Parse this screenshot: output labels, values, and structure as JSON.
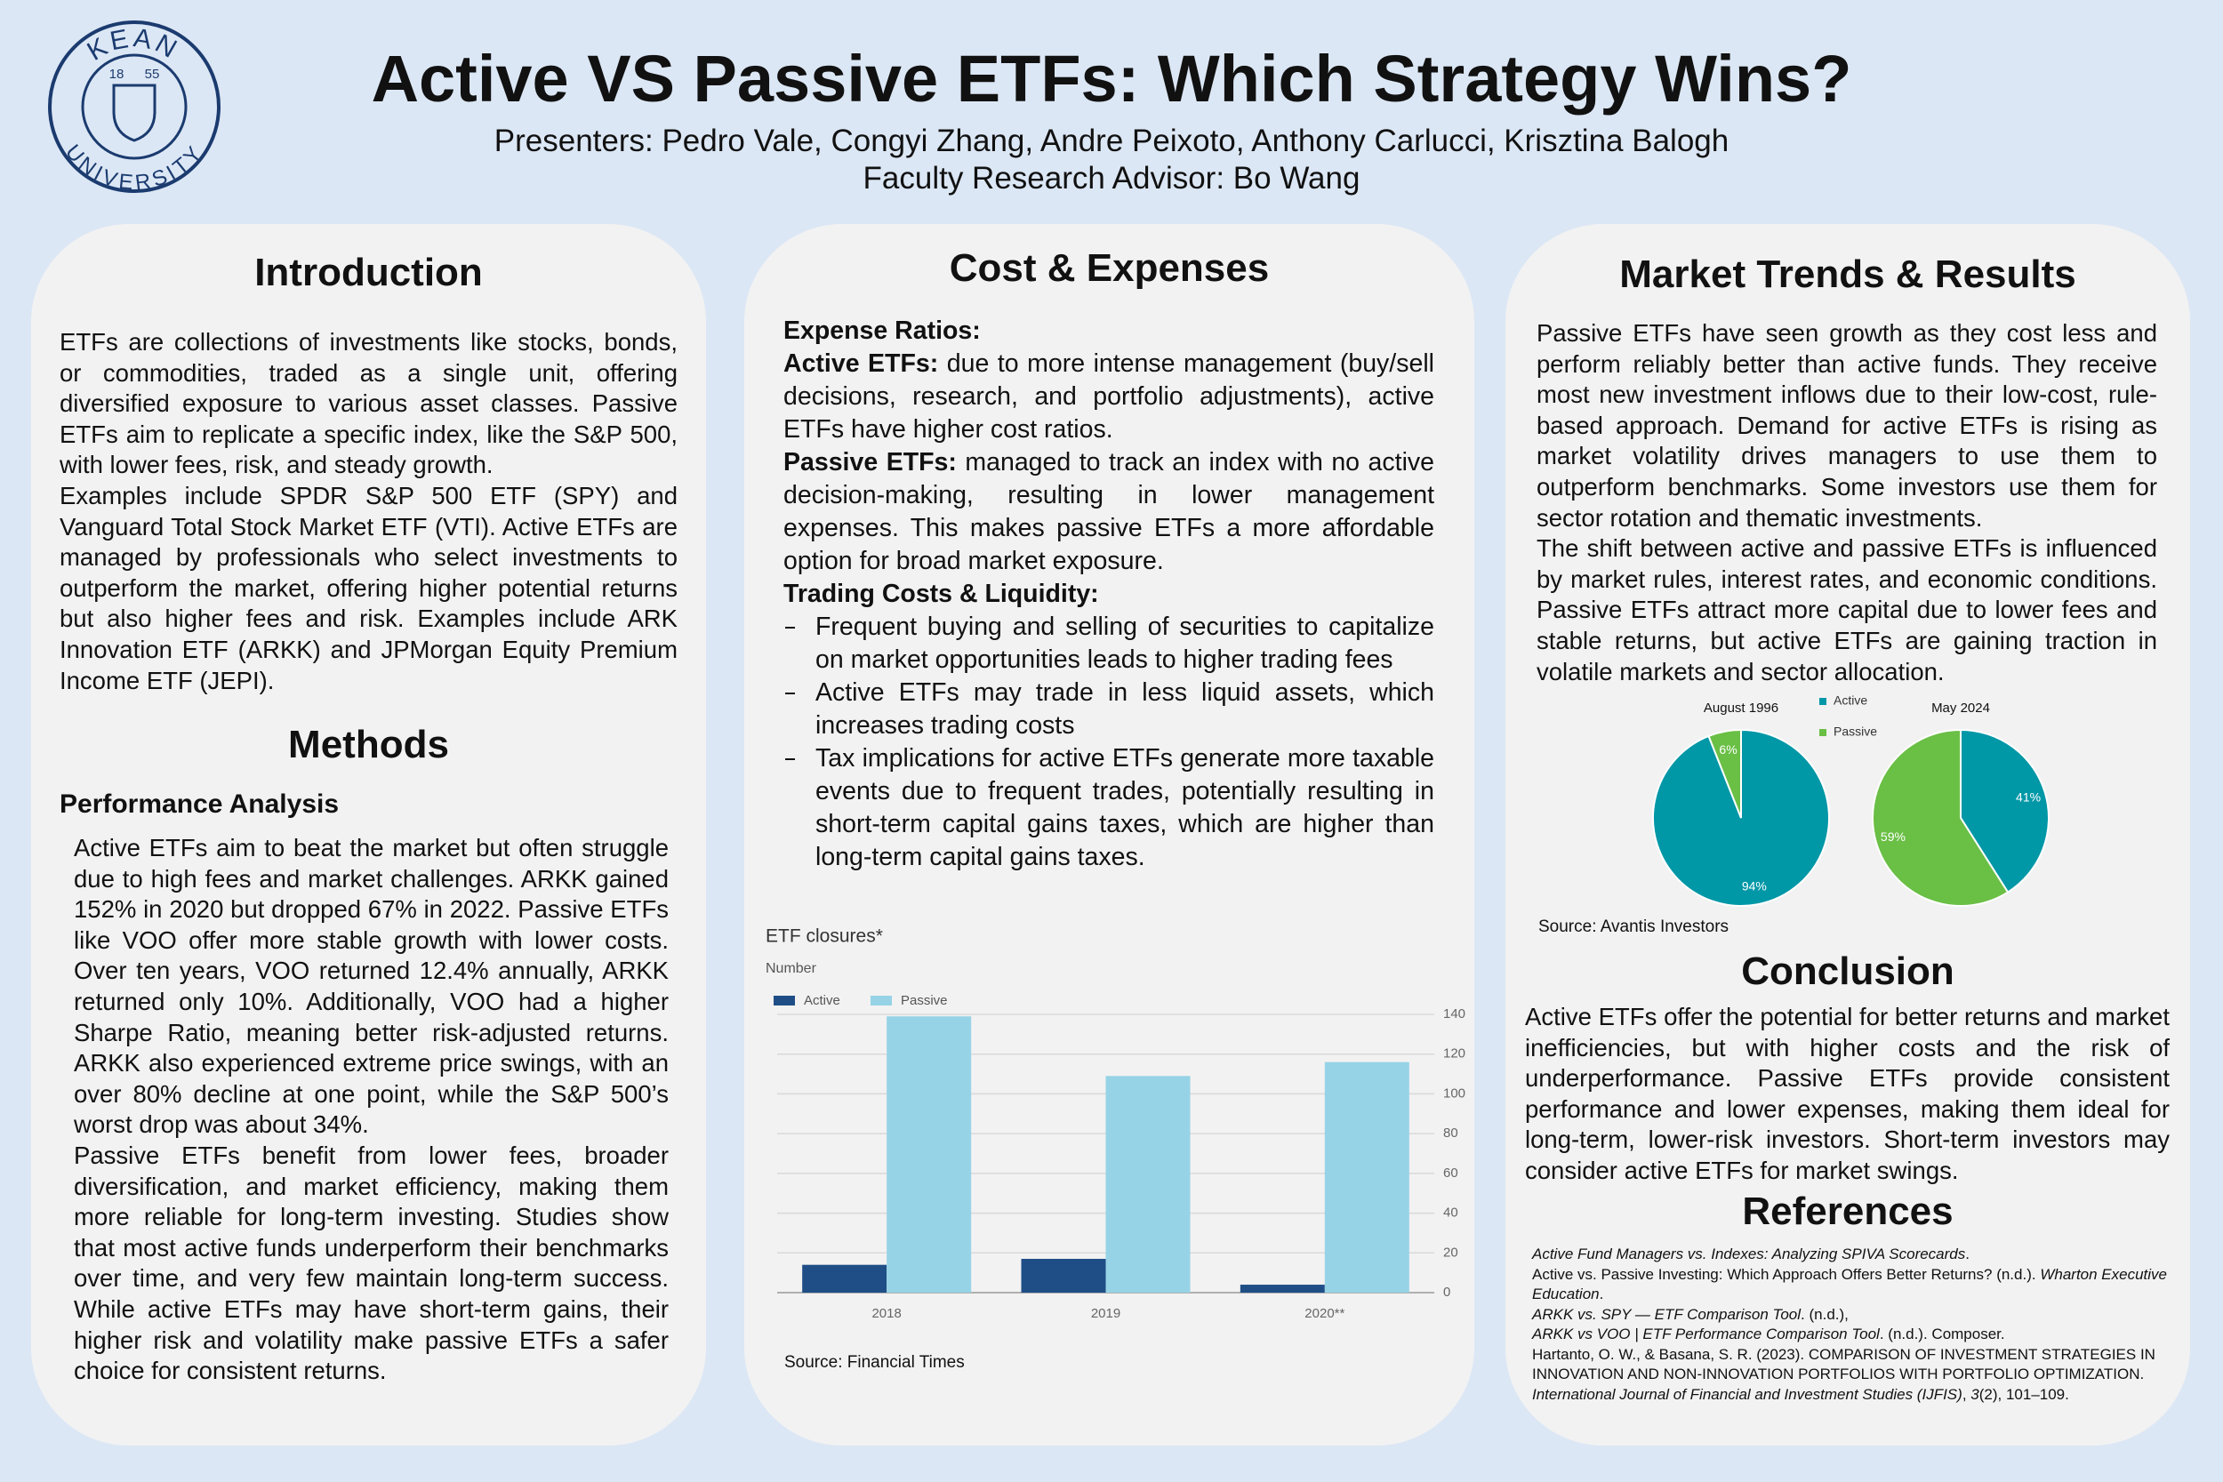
{
  "header": {
    "title": "Active VS Passive ETFs: Which Strategy Wins?",
    "presenters": "Presenters: Pedro Vale, Congyi Zhang, Andre Peixoto, Anthony Carlucci, Krisztina Balogh",
    "advisor": "Faculty Research Advisor: Bo Wang",
    "logo": {
      "top": "KEAN",
      "bottom": "UNIVERSITY",
      "year_left": "18",
      "year_right": "55"
    }
  },
  "introduction": {
    "heading": "Introduction",
    "paragraphs": [
      "ETFs are collections of investments like stocks, bonds, or commodities, traded as a single unit, offering diversified exposure to various asset classes. Passive ETFs aim to replicate a specific index, like the S&P 500, with lower fees, risk, and steady growth.",
      "Examples include SPDR S&P 500 ETF (SPY) and Vanguard Total Stock Market ETF (VTI). Active ETFs are managed by professionals who select investments to outperform the market, offering higher potential returns but also higher fees and risk. Examples include ARK Innovation ETF (ARKK) and JPMorgan Equity Premium Income ETF (JEPI)."
    ]
  },
  "methods": {
    "heading": "Methods",
    "subheading": "Performance Analysis",
    "paragraphs": [
      "Active ETFs aim to beat the market but often struggle due to high fees and market challenges. ARKK gained 152% in 2020 but dropped 67% in 2022. Passive ETFs like VOO offer more stable growth with lower costs. Over ten years, VOO returned 12.4% annually, ARKK returned only 10%. Additionally, VOO had a higher Sharpe Ratio, meaning better risk-adjusted returns. ARKK also experienced extreme price swings, with an over 80% decline at one point, while the S&P 500’s worst drop was about 34%.",
      "Passive ETFs benefit from lower fees, broader diversification, and market efficiency, making them more reliable for long-term investing. Studies show that most active funds underperform their benchmarks over time, and very few maintain long-term success. While active ETFs may have short-term gains, their higher risk and volatility make passive ETFs a safer choice for consistent returns."
    ]
  },
  "cost": {
    "heading": "Cost & Expenses",
    "expense_heading": "Expense Ratios:",
    "items": [
      {
        "label": "Active ETFs:",
        "text": "due to more intense management (buy/sell decisions, research, and portfolio adjustments), active ETFs have higher cost ratios."
      },
      {
        "label": "Passive ETFs:",
        "text": "managed to track an index with no active decision-making, resulting in lower management expenses. This makes passive ETFs a more affordable option for broad market exposure."
      }
    ],
    "trading_heading": "Trading Costs & Liquidity:",
    "bullets": [
      "Frequent buying and selling of securities to capitalize on market opportunities leads to higher trading fees",
      "Active ETFs may trade in less liquid assets, which increases trading costs",
      "Tax implications for active ETFs generate more taxable events due to frequent trades, potentially resulting in short-term capital gains taxes, which are higher than long-term capital gains taxes."
    ]
  },
  "market": {
    "heading": "Market Trends & Results",
    "paragraphs": [
      "Passive ETFs have seen growth as they cost less and perform reliably better than active funds. They receive most new investment inflows due to their low-cost, rule-based approach. Demand for active ETFs is rising as market volatility drives managers to use them to outperform benchmarks. Some investors use them for sector rotation and thematic investments.",
      "The shift between active and passive ETFs is influenced by market rules, interest rates, and economic conditions. Passive ETFs attract more capital due to lower fees and stable returns, but active ETFs are gaining traction in volatile markets and sector allocation."
    ],
    "source": "Source: Avantis Investors"
  },
  "conclusion": {
    "heading": "Conclusion",
    "text": "Active ETFs offer the potential for better returns and market inefficiencies, but with higher costs and the risk of underperformance. Passive ETFs provide consistent performance and lower expenses, making them ideal for long-term, lower-risk investors. Short-term investors may consider active ETFs for market swings."
  },
  "references": {
    "heading": "References",
    "items": [
      {
        "segments": [
          {
            "text": "Active Fund Managers vs. Indexes: Analyzing SPIVA Scorecards",
            "italic": true
          },
          {
            "text": ".",
            "italic": false
          }
        ]
      },
      {
        "segments": [
          {
            "text": "Active vs. Passive Investing: Which Approach Offers Better Returns? (n.d.). ",
            "italic": false
          },
          {
            "text": "Wharton Executive Education",
            "italic": true
          },
          {
            "text": ".",
            "italic": false
          }
        ]
      },
      {
        "segments": [
          {
            "text": "ARKK vs. SPY — ETF Comparison Tool",
            "italic": true
          },
          {
            "text": ". (n.d.),",
            "italic": false
          }
        ]
      },
      {
        "segments": [
          {
            "text": "ARKK vs VOO | ETF Performance Comparison Tool",
            "italic": true
          },
          {
            "text": ". (n.d.). Composer.",
            "italic": false
          }
        ]
      },
      {
        "segments": [
          {
            "text": "Hartanto, O. W., & Basana, S. R. (2023). COMPARISON OF INVESTMENT STRATEGIES IN INNOVATION AND NON-INNOVATION PORTFOLIOS WITH PORTFOLIO OPTIMIZATION. ",
            "italic": false
          },
          {
            "text": "International Journal of Financial and Investment Studies (IJFIS)",
            "italic": true
          },
          {
            "text": ", ",
            "italic": false
          },
          {
            "text": "3",
            "italic": true
          },
          {
            "text": "(2), 101–109.",
            "italic": false
          }
        ]
      }
    ]
  },
  "chart_data": [
    {
      "type": "bar",
      "title": "ETF closures*",
      "y_label": "Number",
      "categories": [
        "2018",
        "2019",
        "2020**"
      ],
      "series": [
        {
          "name": "Active",
          "color": "#1f4e86",
          "values": [
            14,
            17,
            4
          ]
        },
        {
          "name": "Passive",
          "color": "#97d3e6",
          "values": [
            139,
            109,
            116
          ]
        }
      ],
      "ylim": [
        0,
        140
      ],
      "yticks": [
        0,
        20,
        40,
        60,
        80,
        100,
        120,
        140
      ],
      "grid": true,
      "source": "Source: Financial Times"
    },
    {
      "type": "pie",
      "title": "August 1996",
      "categories": [
        "Active",
        "Passive"
      ],
      "values": [
        94,
        6
      ],
      "value_labels": [
        "94%",
        "6%"
      ],
      "colors": [
        "#0097a7",
        "#6abf45"
      ],
      "legend": true
    },
    {
      "type": "pie",
      "title": "May 2024",
      "categories": [
        "Active",
        "Passive"
      ],
      "values": [
        41,
        59
      ],
      "value_labels": [
        "41%",
        "59%"
      ],
      "colors": [
        "#0097a7",
        "#6abf45"
      ],
      "legend": false
    }
  ]
}
